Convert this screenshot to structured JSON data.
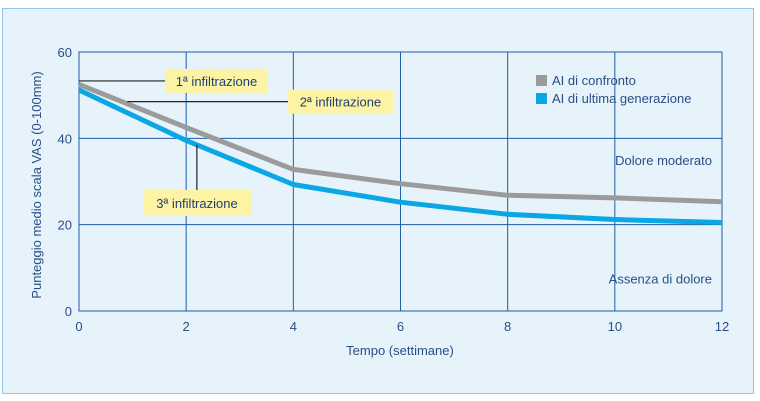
{
  "chart_data": {
    "type": "line",
    "xlabel": "Tempo (settimane)",
    "ylabel": "Punteggio medio scala VAS (0-100mm)",
    "xlim": [
      0,
      12
    ],
    "ylim": [
      0,
      60
    ],
    "x_ticks": [
      0,
      2,
      4,
      6,
      8,
      10,
      12
    ],
    "y_ticks": [
      0,
      20,
      40,
      60
    ],
    "grid": true,
    "legend_position": "top-right",
    "series": [
      {
        "name": "AI di confronto",
        "color": "#9b9b9b",
        "x": [
          0,
          2,
          4,
          6,
          8,
          10,
          12
        ],
        "y": [
          52.5,
          42.5,
          32.8,
          29.5,
          26.8,
          26.2,
          25.3
        ]
      },
      {
        "name": "AI di ultima generazione",
        "color": "#0aa7e4",
        "x": [
          0,
          2,
          4,
          6,
          8,
          10,
          12
        ],
        "y": [
          51.2,
          39.5,
          29.3,
          25.2,
          22.4,
          21.2,
          20.5
        ]
      }
    ],
    "zone_labels": [
      {
        "text": "Dolore moderato",
        "y": 35
      },
      {
        "text": "Assenza di dolore",
        "y": 7.5
      }
    ],
    "annotations": [
      {
        "text": "1ª infiltrazione",
        "x": 0,
        "y": 53.3
      },
      {
        "text": "2ª infiltrazione",
        "x": 0.9,
        "y": 48.5
      },
      {
        "text": "3ª infiltrazione",
        "x": 2.2,
        "y": 30
      }
    ]
  },
  "colors": {
    "background": "#e6f3fb",
    "grid": "#1f5ea8",
    "text": "#2b4e86",
    "callout_fill": "#fdf3a4"
  }
}
